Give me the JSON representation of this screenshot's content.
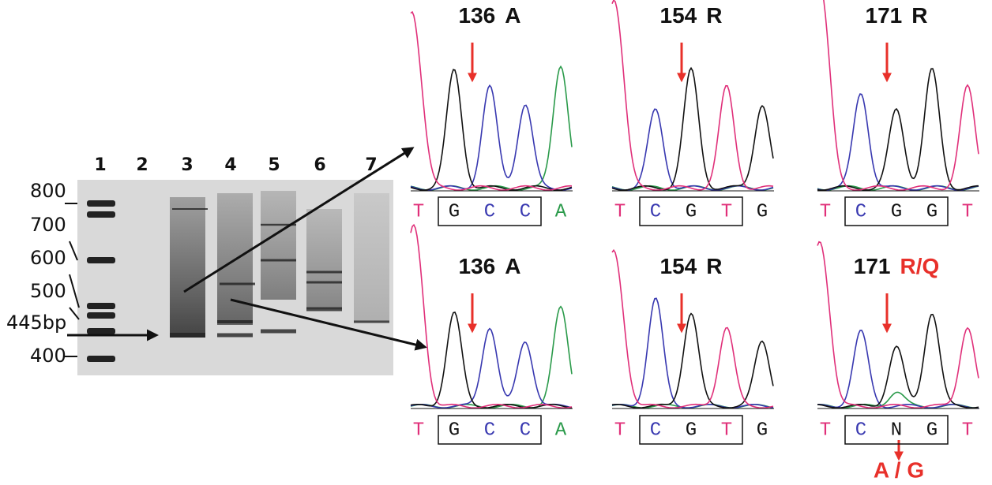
{
  "gel": {
    "lanes": [
      "1",
      "2",
      "3",
      "4",
      "5",
      "6",
      "7"
    ],
    "sizes": [
      "800",
      "700",
      "600",
      "500",
      "445bp",
      "400"
    ]
  },
  "panels": [
    {
      "number": "136",
      "residue": "A",
      "bases": [
        "T",
        "G",
        "C",
        "C",
        "A"
      ]
    },
    {
      "number": "154",
      "residue": "R",
      "bases": [
        "T",
        "C",
        "G",
        "T",
        "G"
      ]
    },
    {
      "number": "171",
      "residue": "R",
      "bases": [
        "T",
        "C",
        "G",
        "G",
        "T"
      ]
    },
    {
      "number": "136",
      "residue": "A",
      "bases": [
        "T",
        "G",
        "C",
        "C",
        "A"
      ]
    },
    {
      "number": "154",
      "residue": "R",
      "bases": [
        "T",
        "C",
        "G",
        "T",
        "G"
      ]
    },
    {
      "number": "171",
      "residue": "R/Q",
      "bases": [
        "T",
        "C",
        "N",
        "G",
        "T"
      ]
    }
  ],
  "mutation": "A / G"
}
